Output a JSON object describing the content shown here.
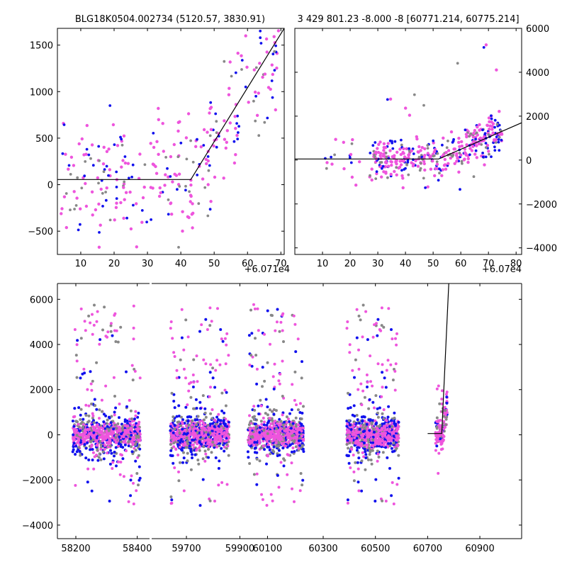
{
  "colors": {
    "pink": "#ee55dd",
    "blue": "#1111ee",
    "gray": "#888888",
    "model": "#000000"
  },
  "chart_data": [
    {
      "type": "scatter",
      "title": "BLG18K0504.002734 (5120.57, 3830.91)",
      "x_offset_label": "+6.071e4",
      "xlim": [
        3,
        71
      ],
      "ylim": [
        -750,
        1680
      ],
      "xticks": [
        10,
        20,
        30,
        40,
        50,
        60,
        70
      ],
      "yticks": [
        -500,
        0,
        500,
        1000,
        1500
      ],
      "yaxis_side": "left",
      "model_line": [
        [
          3,
          55
        ],
        [
          43,
          55
        ],
        [
          71,
          1680
        ]
      ]
    },
    {
      "type": "scatter",
      "title": "3 429 801.23 -8.000 -8 [60771.214, 60775.214]",
      "x_offset_label": "+6.07e4",
      "xlim": [
        0,
        82
      ],
      "ylim": [
        -4300,
        6000
      ],
      "xticks": [
        10,
        20,
        30,
        40,
        50,
        60,
        70,
        80
      ],
      "yticks": [
        -4000,
        -2000,
        0,
        2000,
        4000,
        6000
      ],
      "yaxis_side": "right",
      "model_line": [
        [
          0,
          50
        ],
        [
          52,
          50
        ],
        [
          82,
          1700
        ]
      ]
    },
    {
      "type": "scatter",
      "title": "",
      "broken_axis": true,
      "segments": [
        {
          "xlim": [
            58140,
            58440
          ],
          "xticks": [
            58200,
            58400
          ]
        },
        {
          "xlim": [
            59570,
            59920
          ],
          "xticks": [
            59700,
            59900
          ]
        },
        {
          "xlim": [
            60020,
            60300
          ],
          "xticks": [
            60100,
            60300
          ]
        },
        {
          "xlim": [
            60300,
            61060
          ],
          "xticks": [
            60500,
            60700,
            60900
          ]
        }
      ],
      "ylim": [
        -4600,
        6700
      ],
      "yticks": [
        -4000,
        -2000,
        0,
        2000,
        4000,
        6000
      ],
      "model_line": [
        [
          60700,
          55
        ],
        [
          60754,
          55
        ],
        [
          60781,
          6700
        ]
      ],
      "series": [
        {
          "x_range": [
            58190,
            58410
          ],
          "color": "pink"
        },
        {
          "x_range": [
            59640,
            59860
          ],
          "color": "pink"
        },
        {
          "x_range": [
            60030,
            60230
          ],
          "color": "pink"
        },
        {
          "x_range": [
            60390,
            60590
          ],
          "color": "pink"
        },
        {
          "x_range": [
            60730,
            60775
          ],
          "color": "pink"
        }
      ]
    }
  ]
}
